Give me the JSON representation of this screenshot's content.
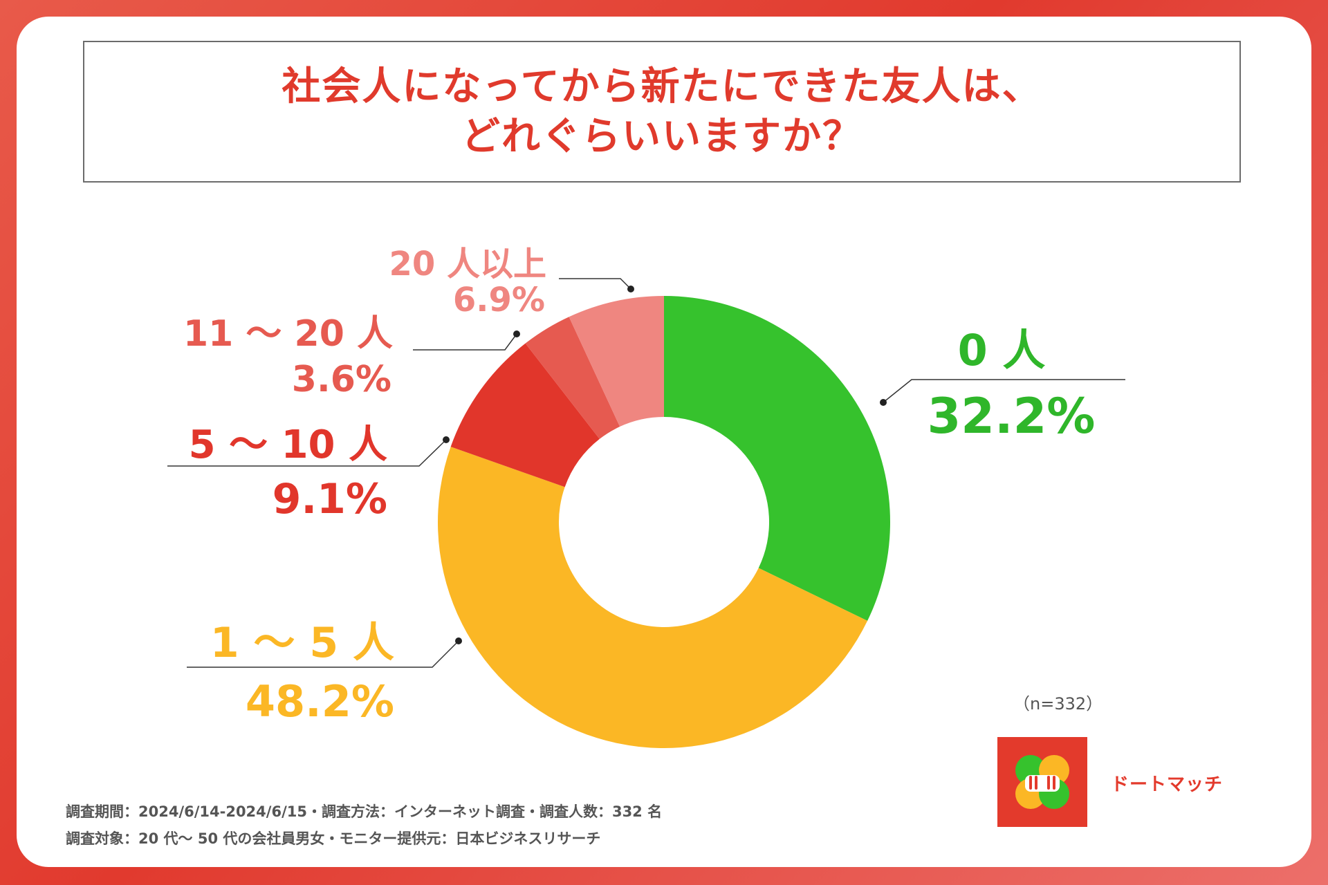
{
  "title": {
    "line1": "社会人になってから新たにできた友人は、",
    "line2": "どれぐらいいますか？"
  },
  "chart_data": {
    "type": "pie",
    "donut": true,
    "title": "社会人になってから新たにできた友人は、どれぐらいいますか？",
    "categories": [
      "0 人",
      "1 ～ 5 人",
      "5 ～ 10 人",
      "11 ～ 20 人",
      "20 人以上"
    ],
    "values": [
      32.2,
      48.2,
      9.1,
      3.6,
      6.9
    ],
    "value_labels": [
      "32.2%",
      "48.2%",
      "9.1%",
      "3.6%",
      "6.9%"
    ],
    "colors": [
      "#36c22d",
      "#fbb725",
      "#e1362b",
      "#e65a50",
      "#ef8680"
    ],
    "start": "12 o'clock",
    "direction": "clockwise",
    "n_label": "（n=332）"
  },
  "footer": {
    "line1": "調査期間：2024/6/14-2024/6/15・調査方法：インターネット調査・調査人数：332 名",
    "line2": "調査対象：20 代～ 50 代の会社員男女・モニター提供元：日本ビジネスリサーチ"
  },
  "logo": {
    "brand_name": "ドートマッチ",
    "colors": {
      "background": "#e33a2c",
      "leaf_green": "#36c22d",
      "leaf_yellow": "#fbb725"
    }
  }
}
